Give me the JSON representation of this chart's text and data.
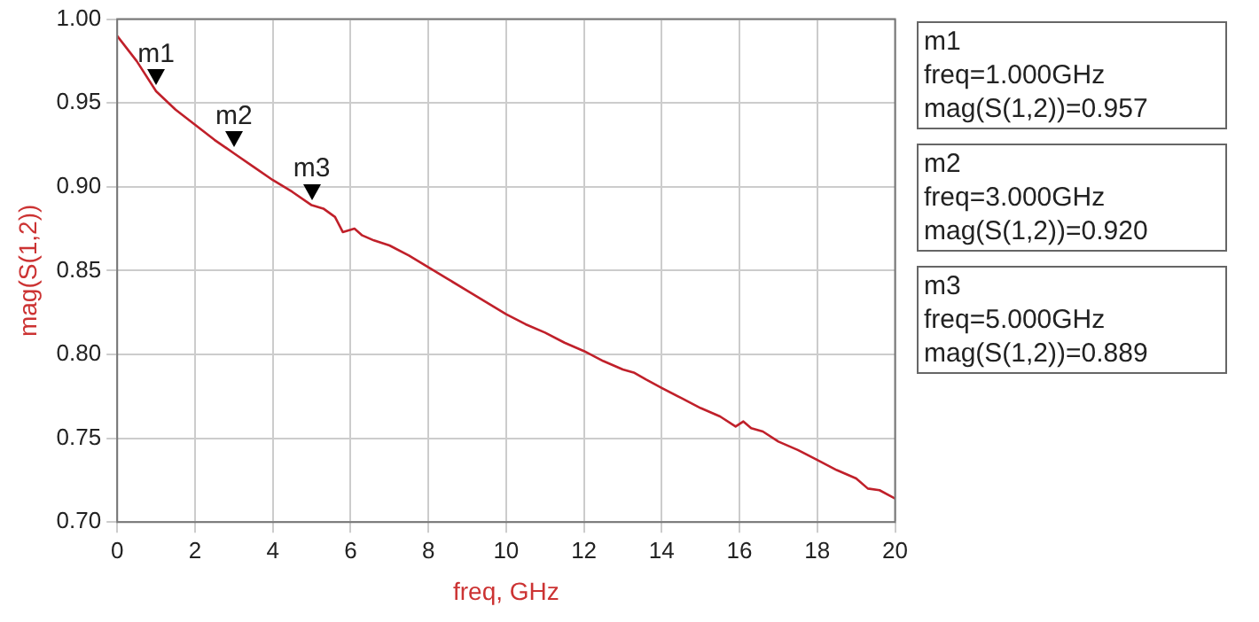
{
  "chart_data": {
    "type": "line",
    "xlabel": "freq, GHz",
    "ylabel": "mag(S(1,2))",
    "x": [
      0,
      0.5,
      1,
      1.5,
      2,
      2.5,
      3,
      3.5,
      4,
      4.5,
      5,
      5.3,
      5.6,
      5.8,
      6.1,
      6.3,
      6.6,
      7,
      7.5,
      8,
      8.5,
      9,
      9.5,
      10,
      10.5,
      11,
      11.5,
      12,
      12.5,
      13,
      13.3,
      13.6,
      14,
      14.5,
      15,
      15.5,
      15.9,
      16.1,
      16.3,
      16.6,
      17,
      17.5,
      18,
      18.5,
      19,
      19.3,
      19.6,
      20
    ],
    "series": [
      {
        "color": "#c0202a",
        "values": [
          0.99,
          0.975,
          0.957,
          0.946,
          0.937,
          0.928,
          0.92,
          0.912,
          0.904,
          0.897,
          0.889,
          0.887,
          0.882,
          0.873,
          0.875,
          0.871,
          0.868,
          0.865,
          0.859,
          0.852,
          0.845,
          0.838,
          0.831,
          0.824,
          0.818,
          0.813,
          0.807,
          0.802,
          0.796,
          0.791,
          0.789,
          0.785,
          0.78,
          0.774,
          0.768,
          0.763,
          0.757,
          0.76,
          0.756,
          0.754,
          0.748,
          0.743,
          0.737,
          0.731,
          0.726,
          0.72,
          0.719,
          0.714
        ]
      }
    ],
    "xlim": [
      0,
      20
    ],
    "xticks": [
      0,
      2,
      4,
      6,
      8,
      10,
      12,
      14,
      16,
      18,
      20
    ],
    "ylim": [
      0.7,
      1.0
    ],
    "yticks": [
      {
        "value": 0.7,
        "label": "0.70"
      },
      {
        "value": 0.75,
        "label": "0.75"
      },
      {
        "value": 0.8,
        "label": "0.80"
      },
      {
        "value": 0.85,
        "label": "0.85"
      },
      {
        "value": 0.9,
        "label": "0.90"
      },
      {
        "value": 0.95,
        "label": "0.95"
      },
      {
        "value": 1.0,
        "label": "1.00"
      }
    ],
    "grid": true,
    "legend": false,
    "marker": "none",
    "line_style": "solid",
    "annotations": [
      {
        "text": "m1",
        "x": 1,
        "y": 0.957
      },
      {
        "text": "m2",
        "x": 3,
        "y": 0.92
      },
      {
        "text": "m3",
        "x": 5,
        "y": 0.889
      },
      "m1\nfreq=1.000GHz\nmag(S(1,2))=0.957",
      "m2\nfreq=3.000GHz\nmag(S(1,2))=0.920",
      "m3\nfreq=5.000GHz\nmag(S(1,2))=0.889"
    ]
  }
}
